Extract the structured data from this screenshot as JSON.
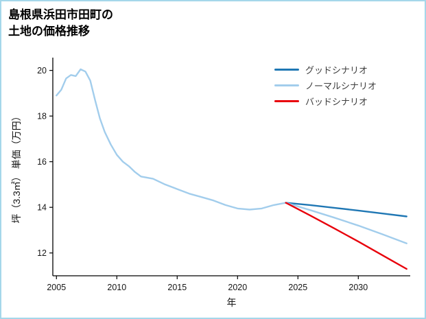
{
  "page": {
    "border_color": "#a5d7ea",
    "background": "#ffffff"
  },
  "title": {
    "line1": "島根県浜田市田町の",
    "line2": "土地の価格推移"
  },
  "chart_data": {
    "type": "line",
    "title": "島根県浜田市田町の土地の価格推移",
    "xlabel": "年",
    "ylabel": "坪（3.3㎡） 単価（万円）",
    "xlim": [
      2004.7,
      2034.3
    ],
    "ylim": [
      11.0,
      20.5
    ],
    "xticks": [
      2005,
      2010,
      2015,
      2020,
      2025,
      2030
    ],
    "yticks": [
      12,
      14,
      16,
      18,
      20
    ],
    "grid": false,
    "legend_position": "upper right",
    "axis_color": "#000000",
    "series": [
      {
        "id": "history",
        "color": "#a2cdec",
        "x": [
          2005,
          2005.4,
          2005.8,
          2006.2,
          2006.6,
          2007,
          2007.4,
          2007.8,
          2008.2,
          2008.6,
          2009,
          2009.5,
          2010,
          2010.5,
          2011,
          2011.5,
          2012,
          2013,
          2014,
          2015,
          2016,
          2017,
          2018,
          2019,
          2020,
          2021,
          2022,
          2023,
          2024
        ],
        "y": [
          18.9,
          19.15,
          19.65,
          19.8,
          19.75,
          20.05,
          19.95,
          19.55,
          18.7,
          17.9,
          17.3,
          16.75,
          16.3,
          16.0,
          15.8,
          15.55,
          15.35,
          15.25,
          15.0,
          14.8,
          14.6,
          14.45,
          14.3,
          14.1,
          13.95,
          13.9,
          13.95,
          14.1,
          14.2
        ]
      },
      {
        "id": "good-scenario",
        "name": "グッドシナリオ",
        "color": "#1f77b4",
        "x": [
          2024,
          2026,
          2028,
          2030,
          2032,
          2034
        ],
        "y": [
          14.2,
          14.1,
          13.98,
          13.86,
          13.73,
          13.6
        ]
      },
      {
        "id": "normal-scenario",
        "name": "ノーマルシナリオ",
        "color": "#a2cdec",
        "x": [
          2024,
          2026,
          2028,
          2030,
          2032,
          2034
        ],
        "y": [
          14.2,
          13.88,
          13.55,
          13.2,
          12.82,
          12.42
        ]
      },
      {
        "id": "bad-scenario",
        "name": "バッドシナリオ",
        "color": "#e8000b",
        "x": [
          2024,
          2026,
          2028,
          2030,
          2032,
          2034
        ],
        "y": [
          14.2,
          13.65,
          13.08,
          12.5,
          11.9,
          11.3
        ]
      }
    ]
  }
}
